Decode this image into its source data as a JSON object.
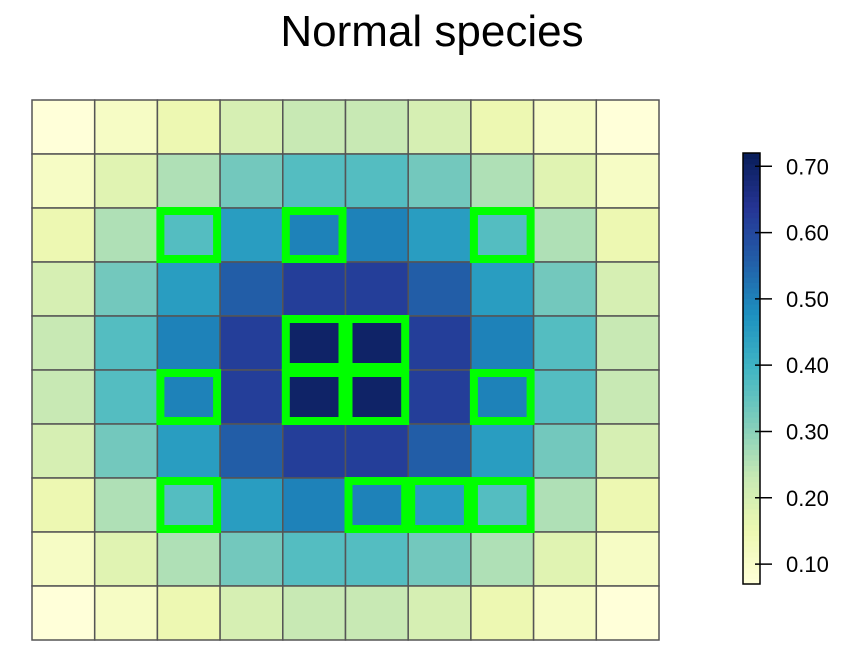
{
  "chart_data": {
    "type": "heatmap",
    "title": "Normal species",
    "nrows": 10,
    "ncols": 10,
    "values": [
      [
        0.07,
        0.11,
        0.15,
        0.2,
        0.23,
        0.23,
        0.2,
        0.15,
        0.11,
        0.07
      ],
      [
        0.11,
        0.18,
        0.26,
        0.33,
        0.37,
        0.37,
        0.33,
        0.26,
        0.18,
        0.11
      ],
      [
        0.15,
        0.26,
        0.37,
        0.45,
        0.5,
        0.5,
        0.45,
        0.37,
        0.26,
        0.15
      ],
      [
        0.2,
        0.33,
        0.45,
        0.56,
        0.62,
        0.62,
        0.56,
        0.45,
        0.33,
        0.2
      ],
      [
        0.23,
        0.37,
        0.5,
        0.62,
        0.7,
        0.7,
        0.62,
        0.5,
        0.37,
        0.23
      ],
      [
        0.23,
        0.37,
        0.5,
        0.62,
        0.7,
        0.7,
        0.62,
        0.5,
        0.37,
        0.23
      ],
      [
        0.2,
        0.33,
        0.45,
        0.56,
        0.62,
        0.62,
        0.56,
        0.45,
        0.33,
        0.2
      ],
      [
        0.15,
        0.26,
        0.37,
        0.45,
        0.5,
        0.5,
        0.45,
        0.37,
        0.26,
        0.15
      ],
      [
        0.11,
        0.18,
        0.26,
        0.33,
        0.37,
        0.37,
        0.33,
        0.26,
        0.18,
        0.11
      ],
      [
        0.07,
        0.11,
        0.15,
        0.2,
        0.23,
        0.23,
        0.2,
        0.15,
        0.11,
        0.07
      ]
    ],
    "highlighted_cells": [
      [
        2,
        2
      ],
      [
        2,
        4
      ],
      [
        2,
        7
      ],
      [
        4,
        4
      ],
      [
        4,
        5
      ],
      [
        5,
        2
      ],
      [
        5,
        4
      ],
      [
        5,
        5
      ],
      [
        5,
        7
      ],
      [
        7,
        2
      ],
      [
        7,
        5
      ],
      [
        7,
        6
      ],
      [
        7,
        7
      ]
    ],
    "highlight_color": "#00ff00",
    "grid_color": "#555555",
    "colorbar": {
      "min": 0.07,
      "max": 0.72,
      "ticks": [
        0.1,
        0.2,
        0.3,
        0.4,
        0.5,
        0.6,
        0.7
      ],
      "tick_labels": [
        "0.10",
        "0.20",
        "0.30",
        "0.40",
        "0.50",
        "0.60",
        "0.70"
      ],
      "palette": [
        "#ffffd9",
        "#edf8b1",
        "#c7e9b4",
        "#7fcdbb",
        "#41b6c4",
        "#1d91c0",
        "#225ea8",
        "#253494",
        "#081d58"
      ]
    }
  }
}
